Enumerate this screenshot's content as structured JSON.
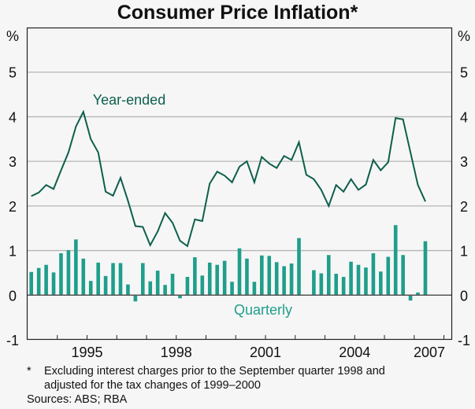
{
  "chart_data": {
    "type": "bar+line",
    "title": "Consumer Price Inflation*",
    "ylabel_left": "%",
    "ylabel_right": "%",
    "ylim": [
      -1,
      6
    ],
    "yticks": [
      -1,
      0,
      1,
      2,
      3,
      4,
      5
    ],
    "grid": true,
    "xtick_labels": [
      "1995",
      "1998",
      "2001",
      "2004",
      "2007"
    ],
    "xlabel_years": [
      1995,
      1998,
      2001,
      2004,
      2007
    ],
    "x_start_year": 1993.5,
    "x_end_year": 2007.75,
    "series": [
      {
        "name": "Year-ended",
        "type": "line",
        "color": "#0d5f4c",
        "start_index": 0,
        "values": [
          2.22,
          2.3,
          2.47,
          2.38,
          2.8,
          3.2,
          3.78,
          4.11,
          3.5,
          3.2,
          2.32,
          2.23,
          2.63,
          2.12,
          1.55,
          1.53,
          1.12,
          1.43,
          1.84,
          1.62,
          1.22,
          1.1,
          1.7,
          1.66,
          2.5,
          2.77,
          2.68,
          2.53,
          2.88,
          3.0,
          2.53,
          3.1,
          2.95,
          2.85,
          3.12,
          3.03,
          3.43,
          2.7,
          2.6,
          2.36,
          2.0,
          2.47,
          2.32,
          2.6,
          2.36,
          2.48,
          3.03,
          2.8,
          2.98,
          3.97,
          3.94,
          3.2,
          2.47,
          2.1
        ]
      },
      {
        "name": "Quarterly",
        "type": "bar",
        "color": "#1f9e8b",
        "values": [
          0.52,
          0.61,
          0.68,
          0.51,
          0.94,
          1.01,
          1.25,
          0.82,
          0.32,
          0.73,
          0.43,
          0.72,
          0.72,
          0.24,
          -0.14,
          0.72,
          0.31,
          0.55,
          0.23,
          0.48,
          -0.07,
          0.41,
          0.85,
          0.44,
          0.73,
          0.68,
          0.77,
          0.3,
          1.05,
          0.82,
          0.3,
          0.89,
          0.88,
          0.74,
          0.65,
          0.71,
          1.28,
          0.0,
          0.56,
          0.49,
          0.9,
          0.48,
          0.41,
          0.75,
          0.68,
          0.62,
          0.94,
          0.53,
          0.86,
          1.57,
          0.9,
          -0.12,
          0.06,
          1.21
        ]
      }
    ],
    "annotations": [
      {
        "text": "Year-ended",
        "near": "1995 peak, upper left"
      },
      {
        "text": "Quarterly",
        "near": "below zero line, center"
      }
    ]
  },
  "footnote": {
    "marker": "*",
    "line1": "Excluding interest charges prior to the September quarter 1998 and",
    "line2": "adjusted for the tax changes of 1999–2000",
    "sources": "Sources: ABS; RBA"
  }
}
